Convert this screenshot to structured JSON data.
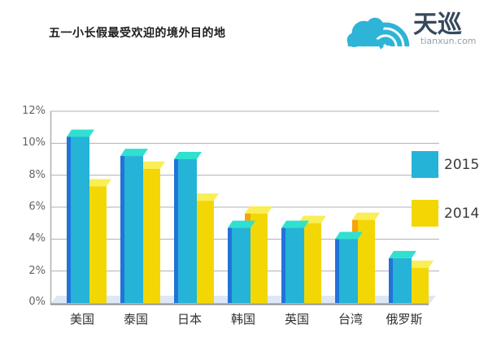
{
  "logo": {
    "brand": "天巡",
    "domain": "tianxun.com",
    "icon": "cloud-waves-icon",
    "icon_color": "#2eb4d7",
    "brand_color": "#36495c"
  },
  "chart_data": {
    "type": "bar",
    "style": "3d-column",
    "title": "五一小长假最受欢迎的境外目的地",
    "categories": [
      "美国",
      "泰国",
      "日本",
      "韩国",
      "英国",
      "台湾",
      "俄罗斯"
    ],
    "series": [
      {
        "name": "2015",
        "values": [
          10.4,
          9.2,
          9.0,
          4.7,
          4.7,
          4.0,
          2.8
        ],
        "color": "#25b3d7",
        "side_color": "#2273d8",
        "top_color": "#30e0d0"
      },
      {
        "name": "2014",
        "values": [
          7.3,
          8.4,
          6.4,
          5.6,
          5.0,
          5.2,
          2.2
        ],
        "color": "#f3d704",
        "side_color": "#f5a40c",
        "top_color": "#f9ee55"
      }
    ],
    "xlabel": "",
    "ylabel": "",
    "ylim": [
      0,
      12
    ],
    "y_ticks": [
      "12%",
      "10%",
      "8%",
      "6%",
      "4%",
      "2%",
      "0%"
    ],
    "y_tick_values": [
      12,
      10,
      8,
      6,
      4,
      2,
      0
    ],
    "grid": true,
    "grid_color": "#b0b0b0",
    "axis_color": "#8f8f8f",
    "floor_color": "#dde7f6",
    "legend_position": "right",
    "background": "#ffffff"
  }
}
